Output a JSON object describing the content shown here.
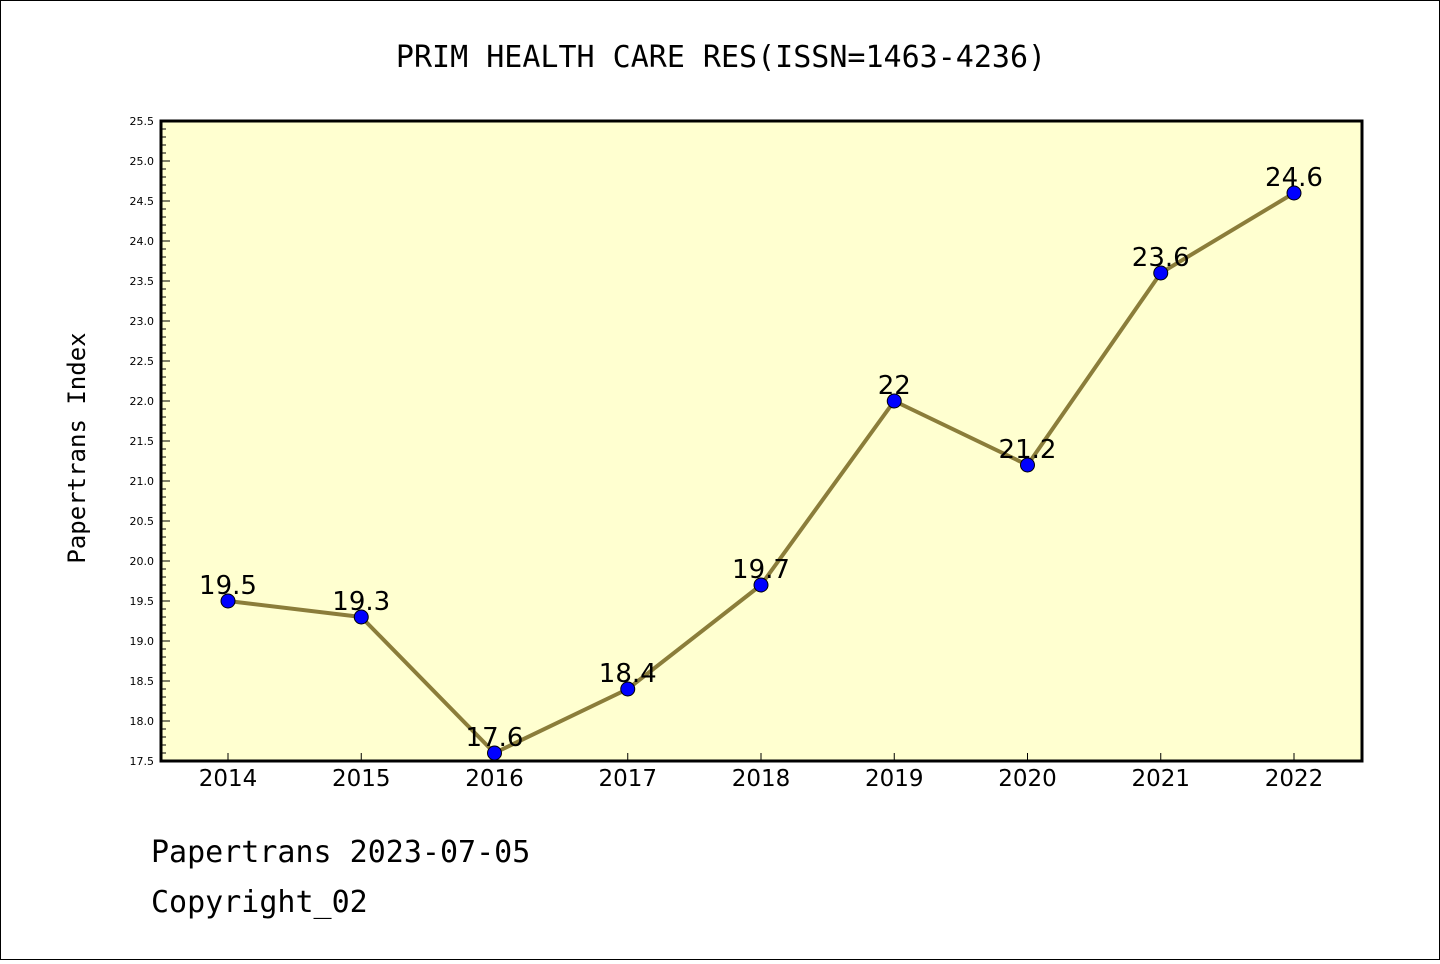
{
  "footer": {
    "line1": "Papertrans 2023-07-05",
    "line2": "Copyright_02"
  },
  "chart_data": {
    "type": "line",
    "title": "PRIM HEALTH CARE RES(ISSN=1463-4236)",
    "xlabel": "",
    "ylabel": "Papertrans Index",
    "categories": [
      "2014",
      "2015",
      "2016",
      "2017",
      "2018",
      "2019",
      "2020",
      "2021",
      "2022"
    ],
    "series": [
      {
        "values": [
          19.5,
          19.3,
          17.6,
          18.4,
          19.7,
          22.0,
          21.2,
          23.6,
          24.6
        ],
        "labels": [
          "19.5",
          "19.3",
          "17.6",
          "18.4",
          "19.7",
          "22",
          "21.2",
          "23.6",
          "24.6"
        ]
      }
    ],
    "ylim": [
      17.5,
      25.5
    ],
    "yticks": [
      "17.5",
      "18.0",
      "18.5",
      "19.0",
      "19.5",
      "20.0",
      "20.5",
      "21.0",
      "21.5",
      "22.0",
      "22.5",
      "23.0",
      "23.5",
      "24.0",
      "24.5",
      "25.0",
      "25.5"
    ],
    "grid": false,
    "legend": "none",
    "colors": {
      "plot_background": "#ffffd0",
      "line": "#8b7d3a",
      "marker": "#0000ff"
    }
  }
}
